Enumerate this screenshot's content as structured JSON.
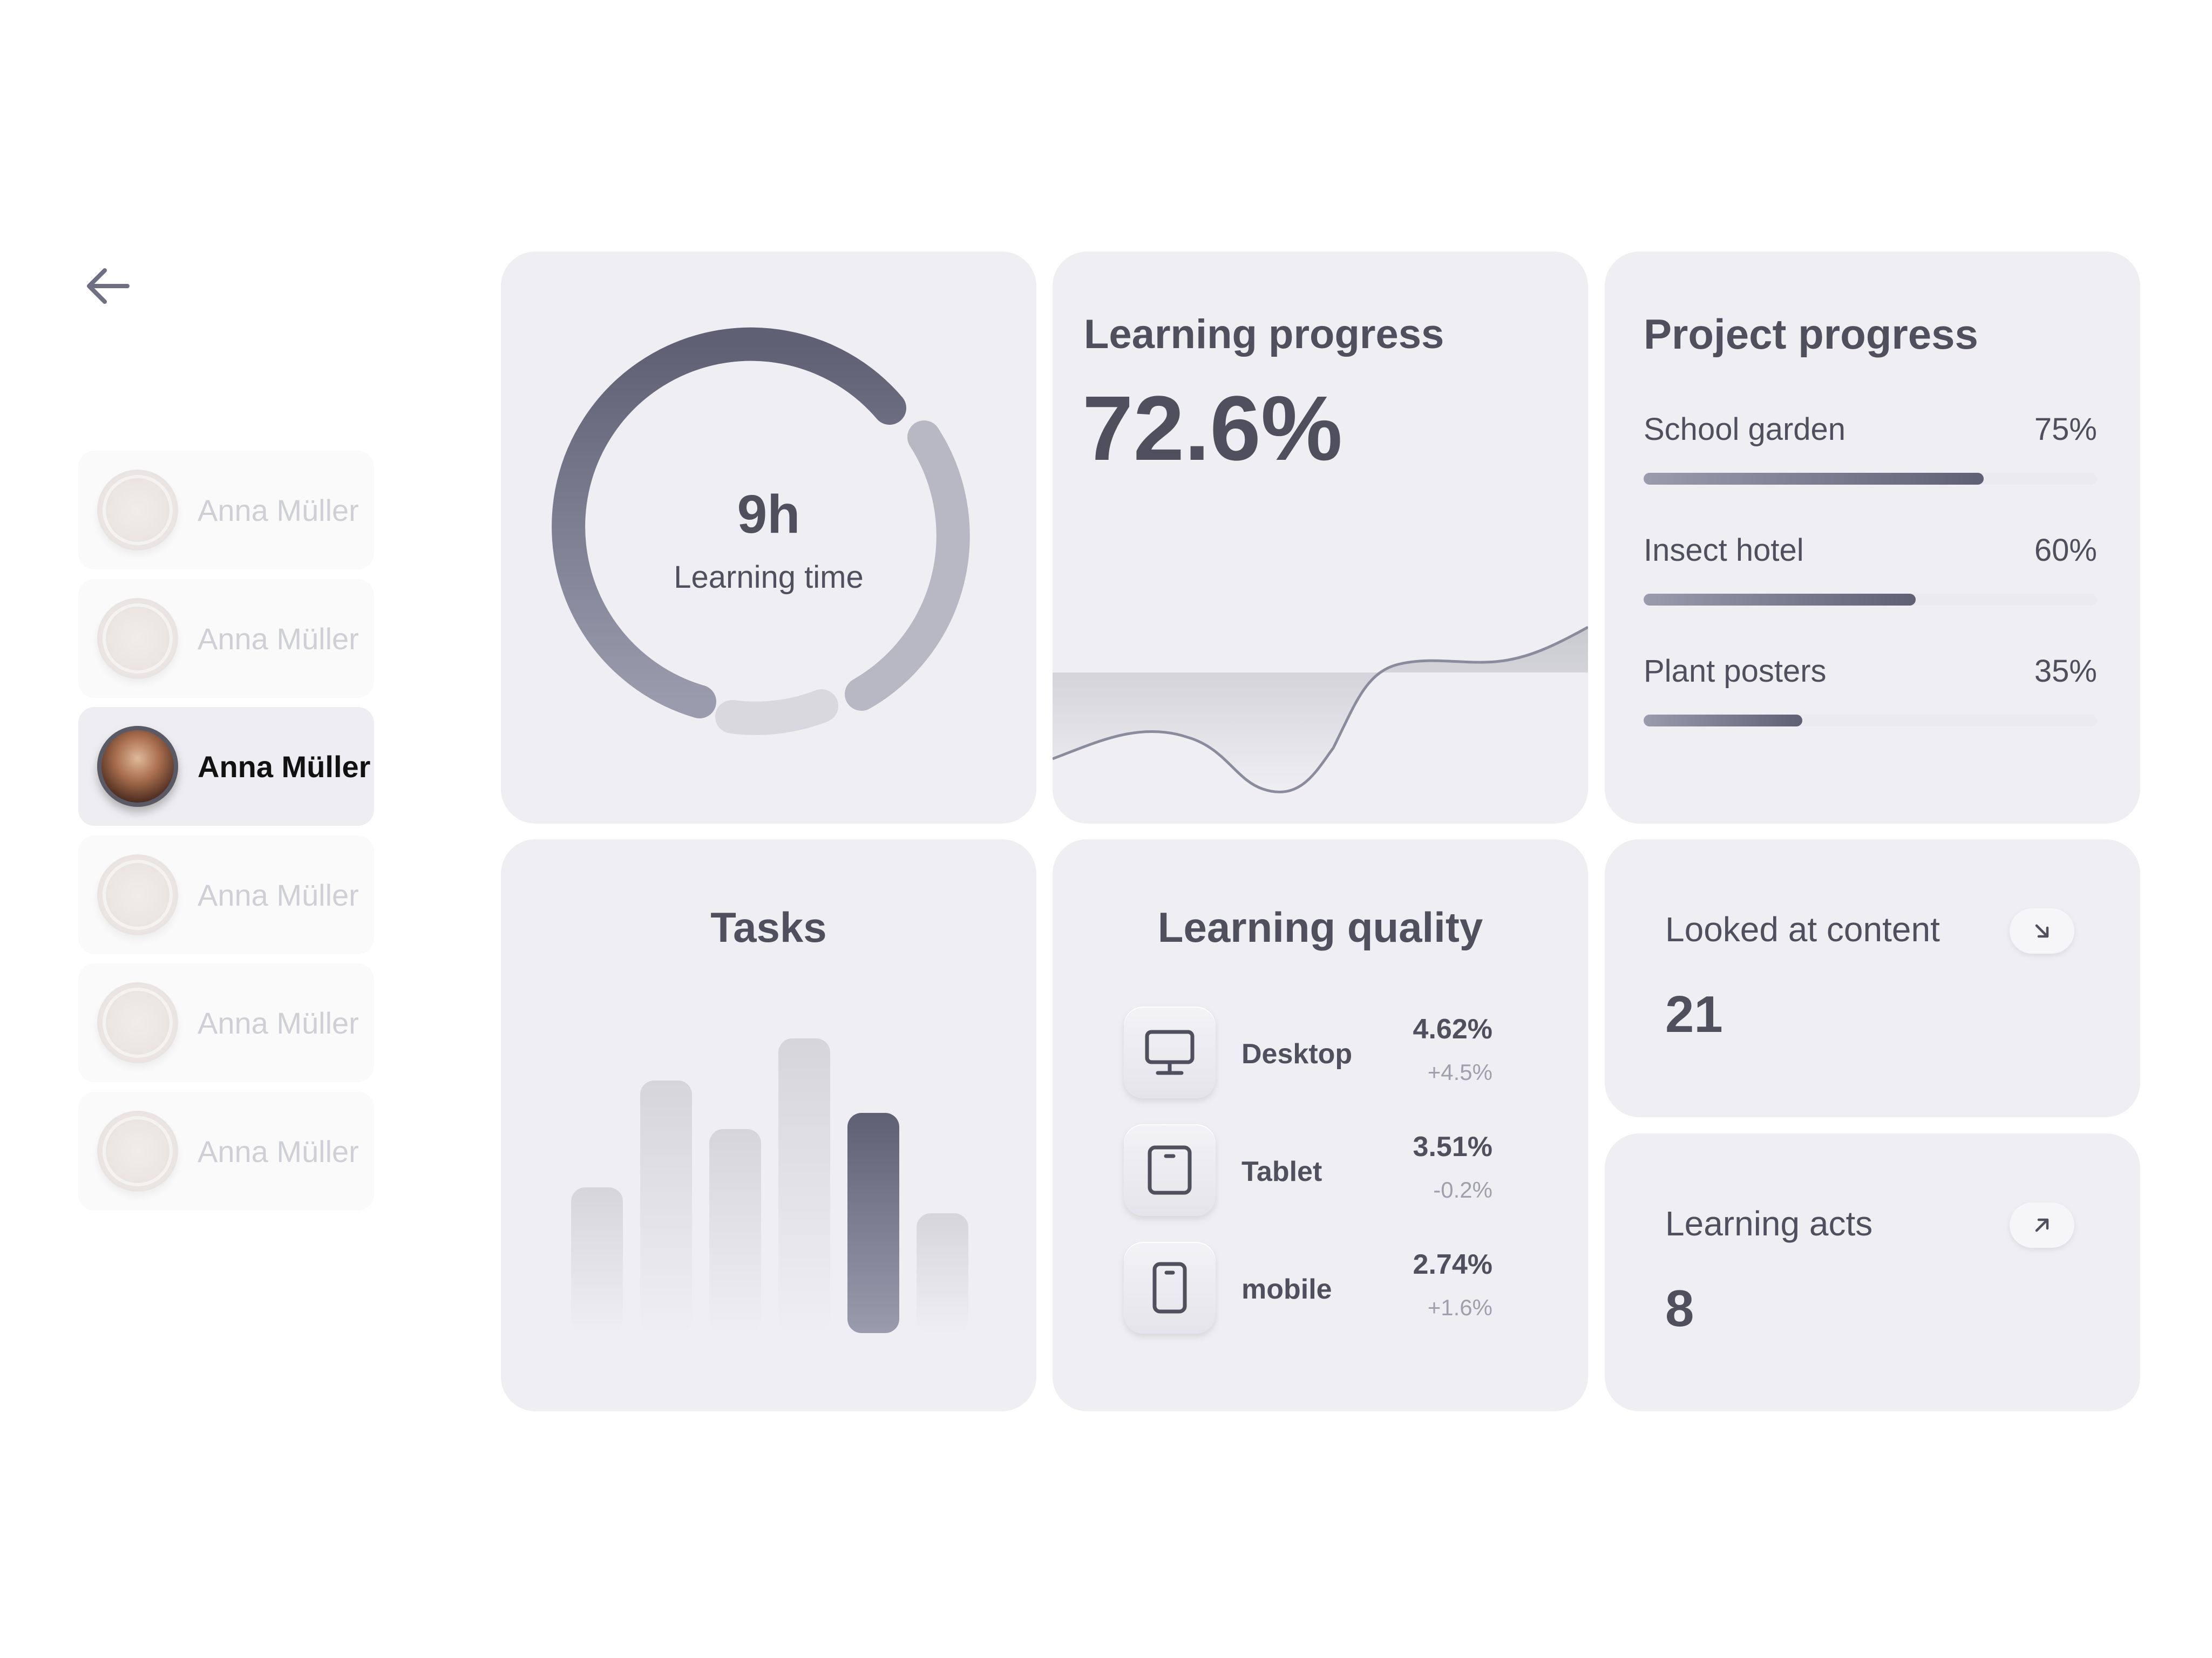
{
  "users": [
    {
      "name": "Anna Müller",
      "active": false
    },
    {
      "name": "Anna Müller",
      "active": false
    },
    {
      "name": "Anna Müller",
      "active": true
    },
    {
      "name": "Anna Müller",
      "active": false
    },
    {
      "name": "Anna Müller",
      "active": false
    },
    {
      "name": "Anna Müller",
      "active": false
    }
  ],
  "learning_time": {
    "value": "9h",
    "label": "Learning time"
  },
  "learning_progress": {
    "title": "Learning progress",
    "value": "72.6%"
  },
  "project_progress": {
    "title": "Project progress",
    "items": [
      {
        "label": "School garden",
        "value": "75%",
        "fraction": 0.75
      },
      {
        "label": "Insect hotel",
        "value": "60%",
        "fraction": 0.6
      },
      {
        "label": "Plant posters",
        "value": "35%",
        "fraction": 0.35
      }
    ]
  },
  "tasks": {
    "title": "Tasks",
    "bars": [
      0.45,
      0.78,
      0.63,
      0.91,
      0.68,
      0.37
    ],
    "highlighted_index": 4
  },
  "learning_quality": {
    "title": "Learning quality",
    "rows": [
      {
        "label": "Desktop",
        "value": "4.62%",
        "delta": "+4.5%",
        "icon": "desktop-icon"
      },
      {
        "label": "Tablet",
        "value": "3.51%",
        "delta": "-0.2%",
        "icon": "tablet-icon"
      },
      {
        "label": "mobile",
        "value": "2.74%",
        "delta": "+1.6%",
        "icon": "mobile-icon"
      }
    ]
  },
  "looked_at_content": {
    "label": "Looked at content",
    "value": "21",
    "icon": "arrow-down-right-icon"
  },
  "learning_acts": {
    "label": "Learning acts",
    "value": "8",
    "icon": "arrow-up-right-icon"
  },
  "colors": {
    "card": "#efeff3",
    "text": "#4f4f5e",
    "accent_dark": "#5f6073",
    "accent_light": "#9a9cae"
  }
}
